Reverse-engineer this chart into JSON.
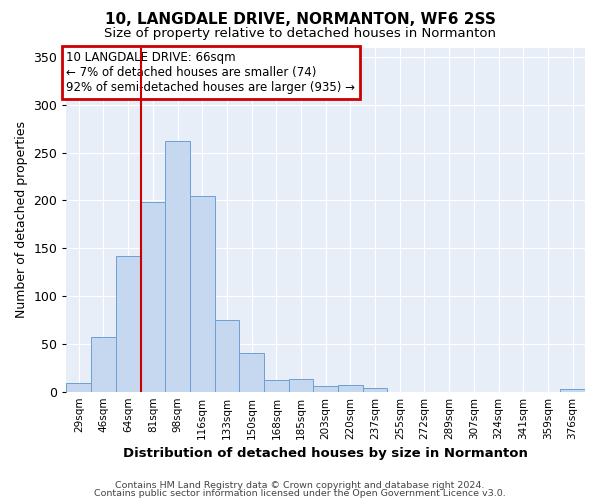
{
  "title": "10, LANGDALE DRIVE, NORMANTON, WF6 2SS",
  "subtitle": "Size of property relative to detached houses in Normanton",
  "xlabel": "Distribution of detached houses by size in Normanton",
  "ylabel": "Number of detached properties",
  "bar_color": "#c5d8f0",
  "bar_edge_color": "#6b9fd4",
  "bg_color": "#e8eef8",
  "grid_color": "#ffffff",
  "categories": [
    "29sqm",
    "46sqm",
    "64sqm",
    "81sqm",
    "98sqm",
    "116sqm",
    "133sqm",
    "150sqm",
    "168sqm",
    "185sqm",
    "203sqm",
    "220sqm",
    "237sqm",
    "255sqm",
    "272sqm",
    "289sqm",
    "307sqm",
    "324sqm",
    "341sqm",
    "359sqm",
    "376sqm"
  ],
  "values": [
    9,
    57,
    142,
    198,
    262,
    205,
    75,
    40,
    12,
    13,
    6,
    7,
    4,
    0,
    0,
    0,
    0,
    0,
    0,
    0,
    3
  ],
  "ylim": [
    0,
    360
  ],
  "yticks": [
    0,
    50,
    100,
    150,
    200,
    250,
    300,
    350
  ],
  "vline_x": 2.5,
  "annotation_title": "10 LANGDALE DRIVE: 66sqm",
  "annotation_line1": "← 7% of detached houses are smaller (74)",
  "annotation_line2": "92% of semi-detached houses are larger (935) →",
  "annotation_box_color": "#ffffff",
  "annotation_box_edge": "#cc0000",
  "vline_color": "#cc0000",
  "footer1": "Contains HM Land Registry data © Crown copyright and database right 2024.",
  "footer2": "Contains public sector information licensed under the Open Government Licence v3.0."
}
